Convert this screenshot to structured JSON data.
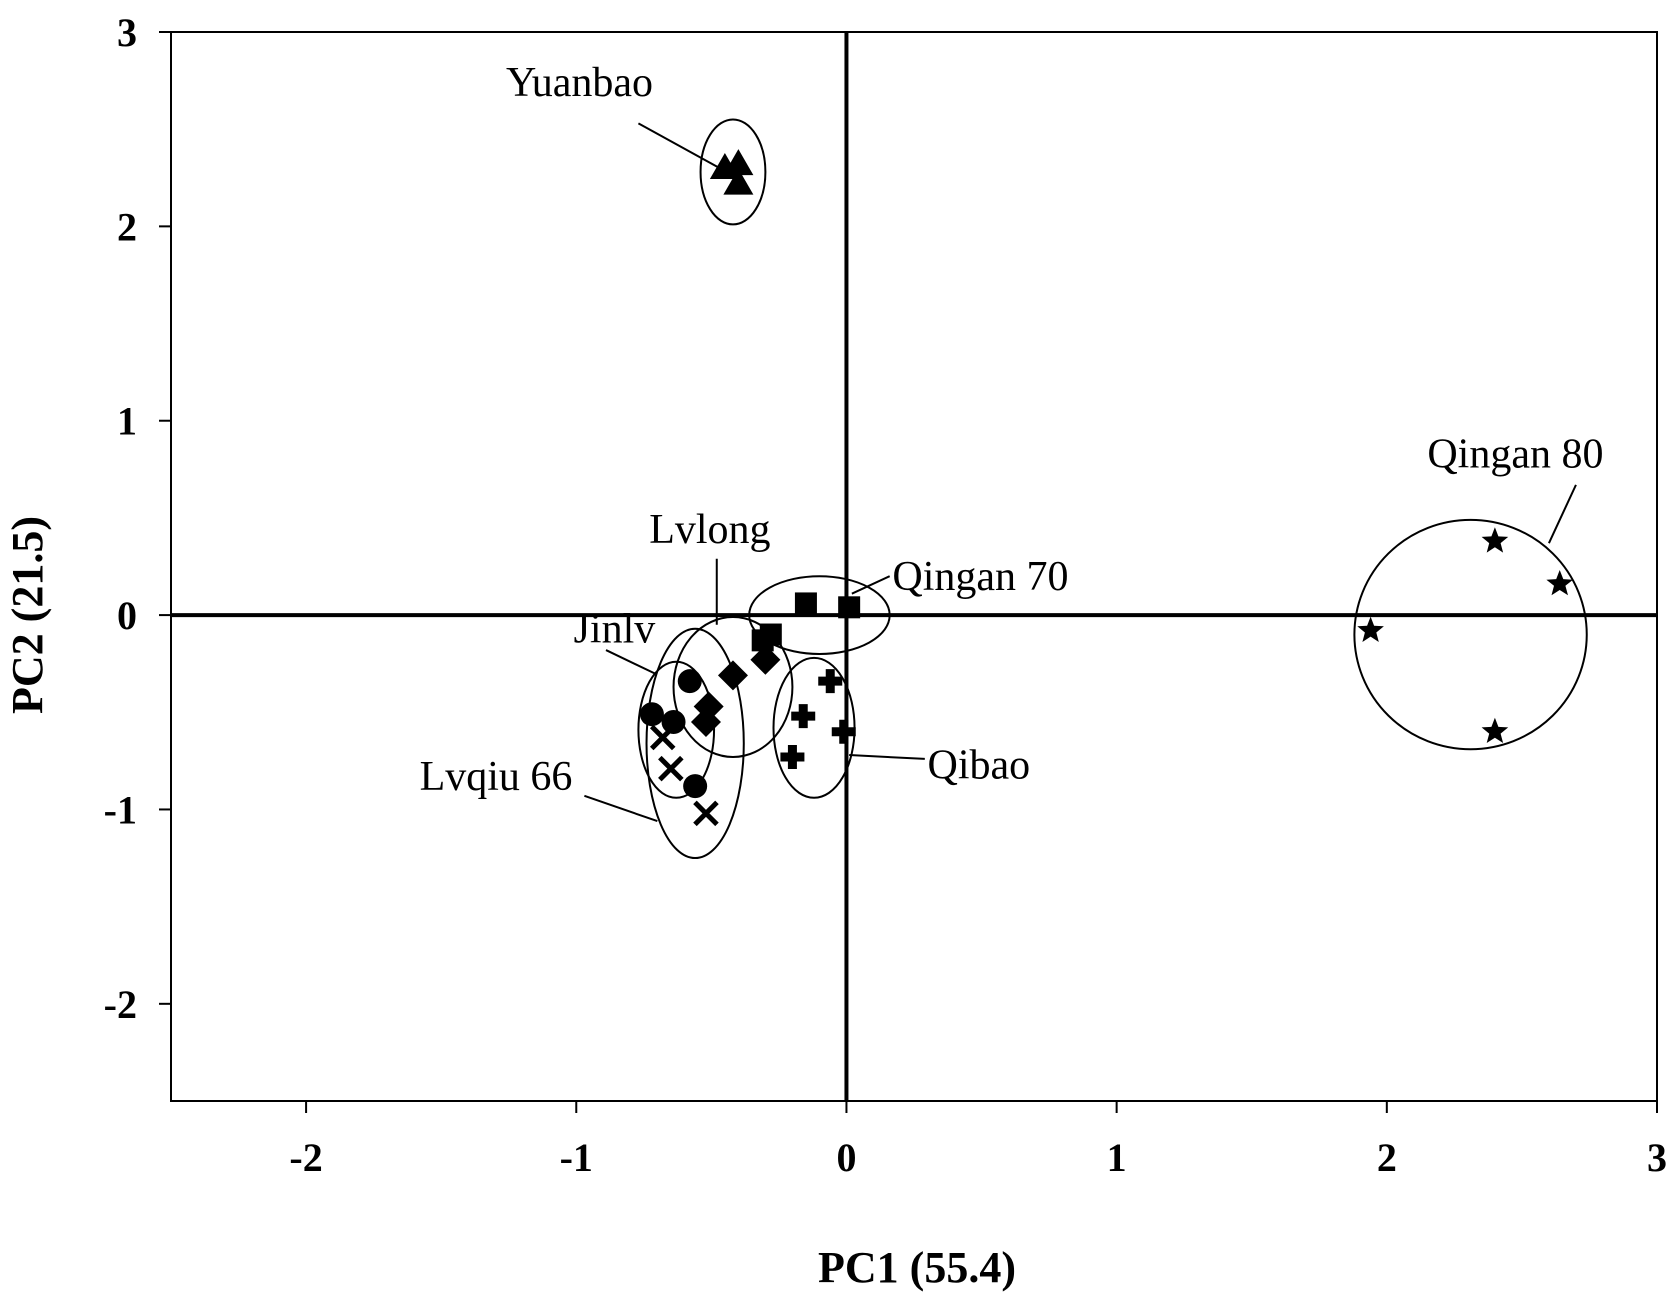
{
  "chart_data": {
    "type": "scatter",
    "title": "",
    "xlabel": "PC1 (55.4)",
    "ylabel": "PC2 (21.5)",
    "xlim": [
      -2.5,
      3
    ],
    "ylim": [
      -2.5,
      3
    ],
    "x_ticks": [
      -2,
      -1,
      0,
      1,
      2,
      3
    ],
    "y_ticks": [
      -2,
      -1,
      0,
      1,
      2,
      3
    ],
    "x_tick_labels": [
      "-2",
      "-1",
      "0",
      "1",
      "2",
      "3"
    ],
    "y_tick_labels": [
      "-2",
      "-1",
      "0",
      "1",
      "2",
      "3"
    ],
    "reference_lines": {
      "x": 0,
      "y": 0
    },
    "grid": false,
    "legend": "none",
    "series": [
      {
        "name": "Yuanbao",
        "marker": "triangle",
        "points": [
          [
            -0.45,
            2.3
          ],
          [
            -0.4,
            2.32
          ],
          [
            -0.4,
            2.22
          ]
        ],
        "ellipse": {
          "cx": -0.42,
          "cy": 2.28,
          "rx": 0.12,
          "ry": 0.27
        }
      },
      {
        "name": "Qingan 80",
        "marker": "star",
        "points": [
          [
            1.94,
            -0.08
          ],
          [
            2.4,
            0.38
          ],
          [
            2.64,
            0.16
          ],
          [
            2.4,
            -0.6
          ]
        ],
        "ellipse": {
          "cx": 2.31,
          "cy": -0.1,
          "rx": 0.43,
          "ry": 0.59
        }
      },
      {
        "name": "Qingan 70",
        "marker": "square",
        "points": [
          [
            -0.15,
            0.06
          ],
          [
            0.01,
            0.04
          ],
          [
            -0.28,
            -0.1
          ],
          [
            -0.31,
            -0.13
          ]
        ],
        "ellipse": {
          "cx": -0.1,
          "cy": 0.0,
          "rx": 0.26,
          "ry": 0.2
        }
      },
      {
        "name": "Lvlong",
        "marker": "diamond",
        "points": [
          [
            -0.42,
            -0.31
          ],
          [
            -0.3,
            -0.23
          ],
          [
            -0.51,
            -0.47
          ],
          [
            -0.52,
            -0.55
          ]
        ],
        "ellipse": {
          "cx": -0.42,
          "cy": -0.37,
          "rx": 0.22,
          "ry": 0.36
        }
      },
      {
        "name": "Qibao",
        "marker": "cross",
        "points": [
          [
            -0.06,
            -0.34
          ],
          [
            -0.16,
            -0.52
          ],
          [
            -0.01,
            -0.6
          ],
          [
            -0.2,
            -0.73
          ]
        ],
        "ellipse": {
          "cx": -0.12,
          "cy": -0.58,
          "rx": 0.15,
          "ry": 0.36
        }
      },
      {
        "name": "Jinlv",
        "marker": "circle",
        "points": [
          [
            -0.58,
            -0.34
          ],
          [
            -0.72,
            -0.51
          ],
          [
            -0.64,
            -0.55
          ],
          [
            -0.56,
            -0.88
          ]
        ],
        "ellipse": {
          "cx": -0.63,
          "cy": -0.59,
          "rx": 0.14,
          "ry": 0.35
        }
      },
      {
        "name": "Lvqiu 66",
        "marker": "x",
        "points": [
          [
            -0.68,
            -0.63
          ],
          [
            -0.65,
            -0.79
          ],
          [
            -0.52,
            -1.02
          ]
        ],
        "ellipse": {
          "cx": -0.56,
          "cy": -0.66,
          "rx": 0.18,
          "ry": 0.59
        }
      }
    ],
    "annotations": [
      {
        "text": "Yuanbao",
        "x": -1.26,
        "y": 2.67,
        "anchor": "start",
        "pointer": [
          [
            -0.77,
            2.53
          ],
          [
            -0.47,
            2.3
          ]
        ]
      },
      {
        "text": "Qingan 80",
        "x": 2.15,
        "y": 0.76,
        "anchor": "start",
        "pointer": [
          [
            2.7,
            0.67
          ],
          [
            2.6,
            0.37
          ]
        ]
      },
      {
        "text": "Lvlong",
        "x": -0.73,
        "y": 0.37,
        "anchor": "start",
        "pointer": [
          [
            -0.48,
            0.29
          ],
          [
            -0.48,
            -0.05
          ]
        ]
      },
      {
        "text": "Qingan 70",
        "x": 0.17,
        "y": 0.13,
        "anchor": "start",
        "pointer": [
          [
            0.16,
            0.2
          ],
          [
            0.02,
            0.11
          ]
        ]
      },
      {
        "text": "Jinlv",
        "x": -1.01,
        "y": -0.14,
        "anchor": "start",
        "pointer": [
          [
            -0.89,
            -0.18
          ],
          [
            -0.71,
            -0.3
          ]
        ]
      },
      {
        "text": "Qibao",
        "x": 0.3,
        "y": -0.84,
        "anchor": "start",
        "pointer": [
          [
            0.29,
            -0.74
          ],
          [
            0.01,
            -0.72
          ]
        ]
      },
      {
        "text": "Lvqiu 66",
        "x": -1.58,
        "y": -0.9,
        "anchor": "start",
        "pointer": [
          [
            -0.97,
            -0.93
          ],
          [
            -0.7,
            -1.06
          ]
        ]
      }
    ]
  }
}
